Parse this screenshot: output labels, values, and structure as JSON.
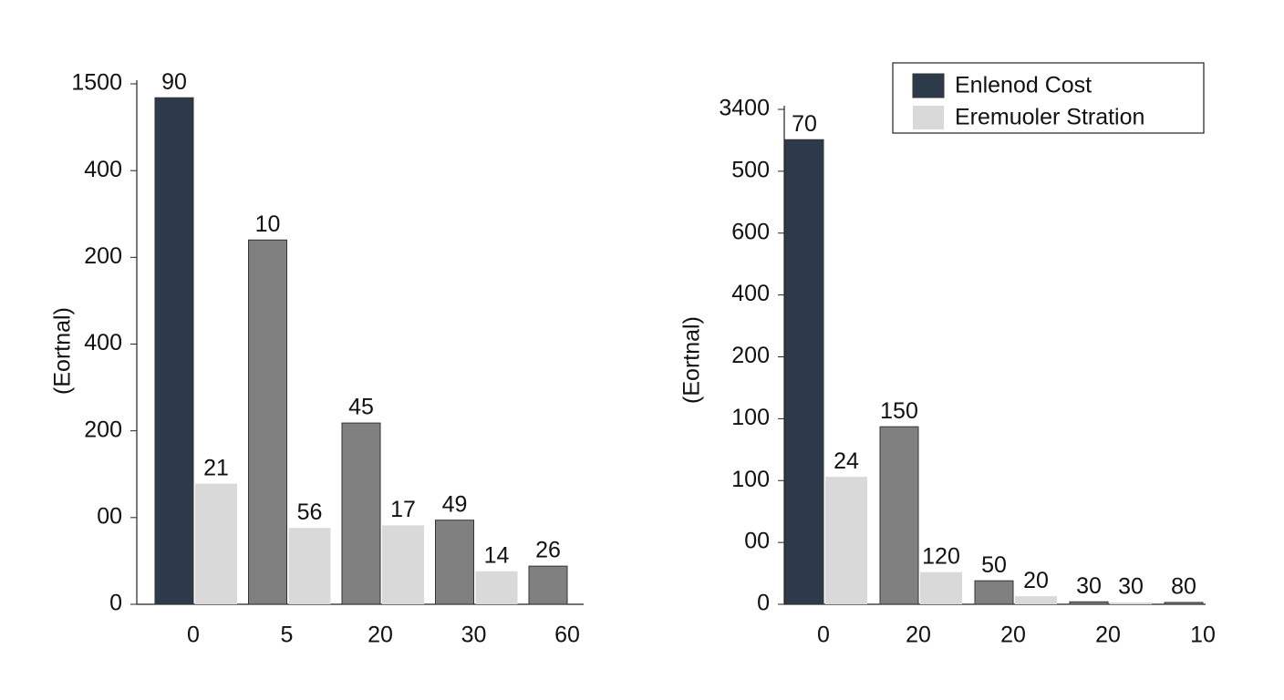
{
  "chart_data": [
    {
      "type": "bar",
      "y_label": "(Eortnal)",
      "categories": [
        "0",
        "5",
        "20",
        "30",
        "60"
      ],
      "ylim": [
        0,
        6
      ],
      "yticks": [
        0,
        {
          "value": 1,
          "label": "00"
        },
        {
          "value": 2,
          "label": "200"
        },
        {
          "value": 3,
          "label": "400"
        },
        {
          "value": 4,
          "label": "200"
        },
        {
          "value": 5,
          "label": "400"
        },
        {
          "value": 6,
          "label": "1500"
        }
      ],
      "series": [
        {
          "colors": [
            "#2c3a4a",
            "#808080",
            "#808080",
            "#808080",
            "#808080"
          ],
          "values": [
            5.84,
            4.2,
            2.09,
            0.97,
            0.44
          ],
          "value_labels": [
            "90",
            "10",
            "45",
            "49",
            "26"
          ]
        },
        {
          "color": "#d9d9d9",
          "values": [
            1.39,
            0.88,
            0.91,
            0.38,
            null
          ],
          "value_labels": [
            "21",
            "56",
            "17",
            "14",
            null
          ]
        }
      ]
    },
    {
      "type": "bar",
      "y_label": "(Eortnal)",
      "legend": "upper right",
      "categories": [
        "0",
        "20",
        "20",
        "20",
        "10"
      ],
      "ylim": [
        0,
        8
      ],
      "yticks": [
        0,
        {
          "value": 1,
          "label": "00"
        },
        {
          "value": 2,
          "label": "100"
        },
        {
          "value": 3,
          "label": "100"
        },
        {
          "value": 4,
          "label": "200"
        },
        {
          "value": 5,
          "label": "400"
        },
        {
          "value": 6,
          "label": "600"
        },
        {
          "value": 7,
          "label": "500"
        },
        {
          "value": 8,
          "label": "3400"
        }
      ],
      "series": [
        {
          "name": "Enlenod Cost",
          "color": "#2c3a4a",
          "colors": [
            "#2c3a4a",
            "#808080",
            "#808080",
            "#808080",
            "#808080"
          ],
          "values": [
            7.51,
            2.87,
            0.38,
            0.04,
            0.03
          ],
          "value_labels": [
            "70",
            "150",
            "50",
            "30",
            "80"
          ]
        },
        {
          "name": "Eremuoler Stration",
          "color": "#d9d9d9",
          "values": [
            2.06,
            0.52,
            0.13,
            0.03,
            null
          ],
          "value_labels": [
            "24",
            "120",
            "20",
            "30",
            null
          ]
        }
      ]
    }
  ]
}
